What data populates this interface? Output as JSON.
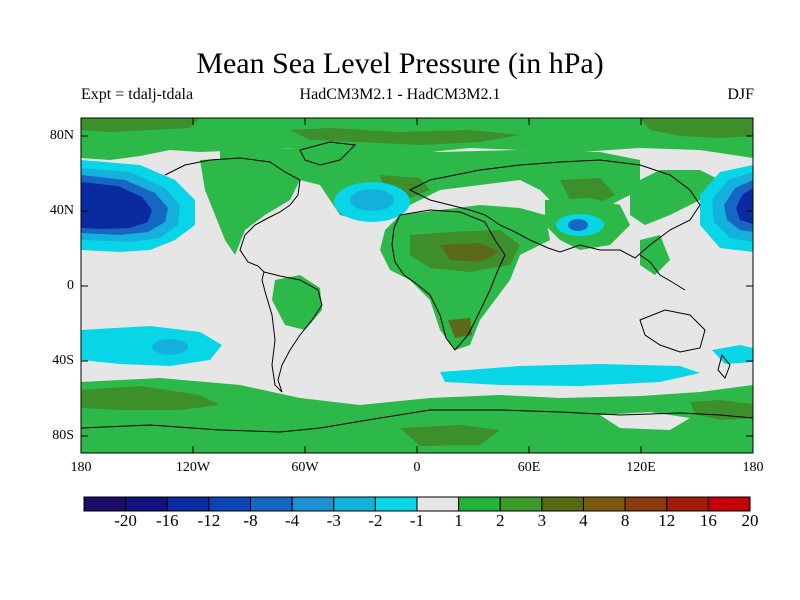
{
  "title": "Mean Sea Level Pressure (in hPa)",
  "subtitle_left": "Expt = tdalj-tdala",
  "subtitle_center": "HadCM3M2.1 - HadCM3M2.1",
  "subtitle_right": "DJF",
  "y_ticks": [
    "80N",
    "40N",
    "0",
    "40S",
    "80S"
  ],
  "x_ticks": [
    "180",
    "120W",
    "60W",
    "0",
    "60E",
    "120E",
    "180"
  ],
  "colorbar": {
    "labels": [
      "-20",
      "-16",
      "-12",
      "-8",
      "-4",
      "-3",
      "-2",
      "-1",
      "1",
      "2",
      "3",
      "4",
      "8",
      "12",
      "16",
      "20"
    ],
    "colors": [
      "#1a0b66",
      "#12137e",
      "#0a2aa0",
      "#0c45b4",
      "#1667c4",
      "#1d8fd2",
      "#14b1dd",
      "#08d6e6",
      "#e6e6e6",
      "#22b33c",
      "#3c9a2a",
      "#566a14",
      "#7a5a10",
      "#8a3a0c",
      "#a21c0a",
      "#c20008"
    ]
  },
  "palette": {
    "neutral": "#e6e6e6",
    "green": "#2db84a",
    "olive_green": "#3d8f2c",
    "dark_olive": "#5b6a1a",
    "cyan": "#08d6e6",
    "light_blue": "#14b1dd",
    "mid_blue": "#1667c4",
    "dark_blue": "#0a2aa0"
  }
}
